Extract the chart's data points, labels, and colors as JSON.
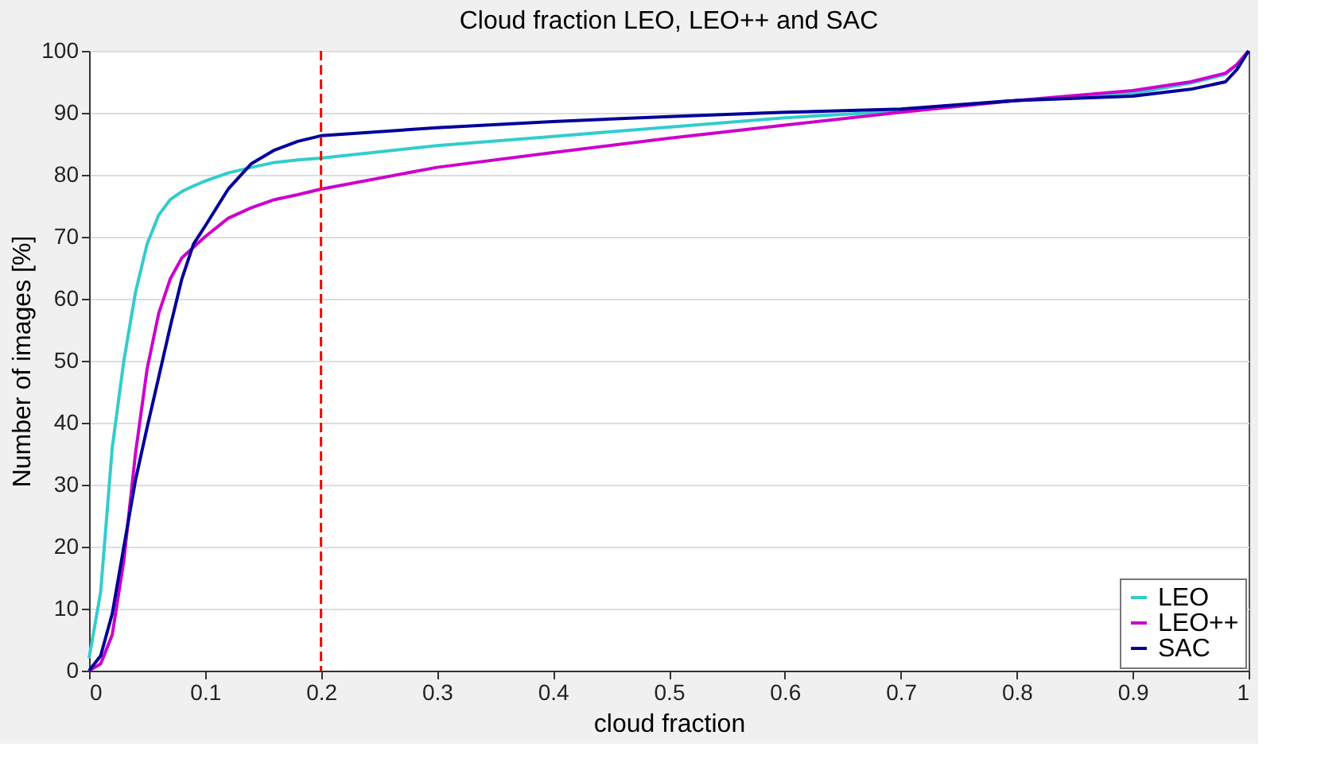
{
  "chart_data": {
    "type": "line",
    "title": "Cloud fraction LEO, LEO++ and SAC",
    "xlabel": "cloud fraction",
    "ylabel": "Number of images [%]",
    "x": [
      0,
      0.01,
      0.02,
      0.03,
      0.04,
      0.05,
      0.06,
      0.07,
      0.08,
      0.09,
      0.1,
      0.12,
      0.14,
      0.16,
      0.18,
      0.2,
      0.3,
      0.4,
      0.5,
      0.6,
      0.7,
      0.8,
      0.9,
      0.95,
      0.98,
      0.99,
      1
    ],
    "series": [
      {
        "name": "LEO",
        "color": "#33cccc",
        "values": [
          2,
          12.7,
          36,
          50,
          61,
          68.8,
          73.5,
          76,
          77.3,
          78.2,
          79,
          80.3,
          81.2,
          82,
          82.4,
          82.7,
          84.7,
          86.2,
          87.7,
          89.2,
          90.3,
          92,
          93.1,
          94.8,
          96.2,
          97.8,
          100
        ]
      },
      {
        "name": "LEO++",
        "color": "#cc00cc",
        "values": [
          0,
          1.1,
          5.8,
          17.8,
          35,
          48.6,
          57.6,
          63.2,
          66.6,
          68.3,
          70,
          73,
          74.7,
          76,
          76.8,
          77.7,
          81.2,
          83.6,
          85.9,
          88,
          90.1,
          92,
          93.6,
          95,
          96.4,
          97.8,
          100
        ]
      },
      {
        "name": "SAC",
        "color": "#000099",
        "values": [
          0,
          2.4,
          9.2,
          20,
          30.7,
          39.2,
          47.3,
          55.5,
          63.2,
          68.8,
          71.7,
          77.7,
          81.8,
          84,
          85.4,
          86.3,
          87.6,
          88.6,
          89.4,
          90.1,
          90.6,
          92,
          92.7,
          93.8,
          95,
          97,
          100
        ]
      }
    ],
    "xlim": [
      0,
      1
    ],
    "xticks": [
      0,
      0.1,
      0.2,
      0.3,
      0.4,
      0.5,
      0.6,
      0.7,
      0.8,
      0.9,
      1
    ],
    "ylim": [
      0,
      100
    ],
    "yticks": [
      0,
      10,
      20,
      30,
      40,
      50,
      60,
      70,
      80,
      90,
      100
    ],
    "ref_lines": [
      {
        "axis": "x",
        "value": 0.2,
        "color": "#ff0000",
        "line_style": "dashed"
      }
    ],
    "grid": "y",
    "legend": "bottom right",
    "marker": "none",
    "line_style": "solid"
  }
}
